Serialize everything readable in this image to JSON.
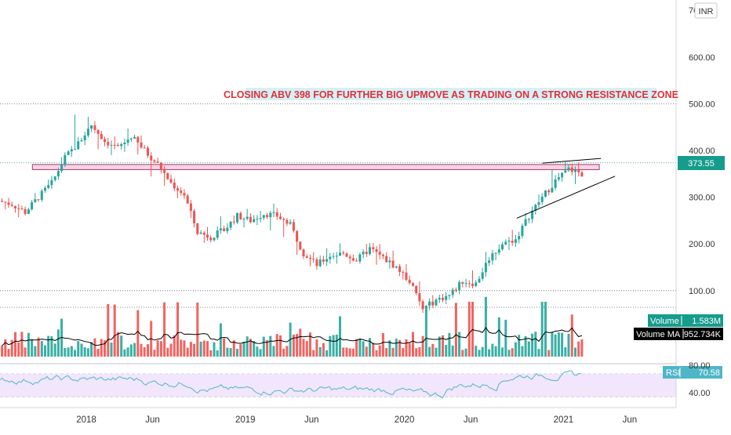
{
  "chart_data": [
    {
      "type": "candlestick",
      "title": "",
      "currency": "INR",
      "annotation": "CLOSING ABV 398 FOR FURTHER  BIG UPMOVE AS TRADING ON A STRONG RESISTANCE ZONE",
      "ylim": [
        0,
        700
      ],
      "price_ticks": [
        "700.00",
        "600.00",
        "500.00",
        "400.00",
        "300.00",
        "200.00",
        "100.00"
      ],
      "x_tick_labels": [
        "2018",
        "Jun",
        "2019",
        "Jun",
        "2020",
        "Jun",
        "2021",
        "Jun"
      ],
      "last_price": "373.55",
      "resistance_zone": {
        "from": 359,
        "to": 370,
        "start": "2017-10",
        "end": "2021-04"
      },
      "series": [
        {
          "name": "price",
          "x": [
            "2017-06",
            "2017-07",
            "2017-08",
            "2017-09",
            "2017-10",
            "2017-11",
            "2017-12",
            "2018-01",
            "2018-02",
            "2018-03",
            "2018-04",
            "2018-05",
            "2018-06",
            "2018-07",
            "2018-08",
            "2018-09",
            "2018-10",
            "2018-11",
            "2018-12",
            "2019-01",
            "2019-02",
            "2019-03",
            "2019-04",
            "2019-05",
            "2019-06",
            "2019-07",
            "2019-08",
            "2019-09",
            "2019-10",
            "2019-11",
            "2019-12",
            "2020-01",
            "2020-02",
            "2020-03",
            "2020-04",
            "2020-05",
            "2020-06",
            "2020-07",
            "2020-08",
            "2020-09",
            "2020-10",
            "2020-11",
            "2020-12",
            "2021-01",
            "2021-02",
            "2021-03"
          ],
          "close": [
            292,
            285,
            268,
            300,
            330,
            385,
            415,
            455,
            420,
            405,
            430,
            400,
            370,
            330,
            305,
            225,
            215,
            230,
            260,
            250,
            265,
            260,
            240,
            180,
            155,
            175,
            180,
            165,
            190,
            170,
            150,
            120,
            60,
            80,
            90,
            120,
            115,
            170,
            200,
            210,
            260,
            300,
            335,
            360,
            350,
            373.55
          ],
          "high": [
            300,
            295,
            290,
            310,
            345,
            400,
            520,
            490,
            460,
            435,
            450,
            440,
            395,
            360,
            335,
            310,
            240,
            255,
            275,
            275,
            280,
            280,
            265,
            240,
            190,
            195,
            200,
            190,
            205,
            200,
            190,
            170,
            150,
            95,
            100,
            125,
            150,
            200,
            210,
            240,
            270,
            310,
            380,
            385,
            375,
            398
          ],
          "low": [
            285,
            275,
            240,
            270,
            300,
            350,
            380,
            400,
            380,
            385,
            390,
            370,
            320,
            300,
            280,
            215,
            190,
            210,
            225,
            235,
            240,
            225,
            190,
            145,
            140,
            150,
            160,
            150,
            155,
            140,
            135,
            100,
            60,
            70,
            80,
            100,
            110,
            130,
            160,
            180,
            205,
            255,
            300,
            320,
            310,
            325
          ]
        },
        {
          "name": "Volume",
          "label": "Volume",
          "last_value": "1.583M"
        },
        {
          "name": "Volume MA",
          "label": "Volume MA",
          "last_value": "952.734K"
        }
      ],
      "resistance_lines": [
        {
          "from": "2020-12",
          "to": "2021-03",
          "value": 383
        }
      ],
      "support_line": {
        "from": [
          "2020-09",
          255
        ],
        "to": [
          "2021-04",
          345
        ]
      }
    },
    {
      "type": "line",
      "name": "RSI",
      "label": "RSI",
      "last_value": "70.58",
      "y_ticks": [
        "80.00",
        "40.00"
      ],
      "band": [
        30,
        70
      ]
    }
  ]
}
